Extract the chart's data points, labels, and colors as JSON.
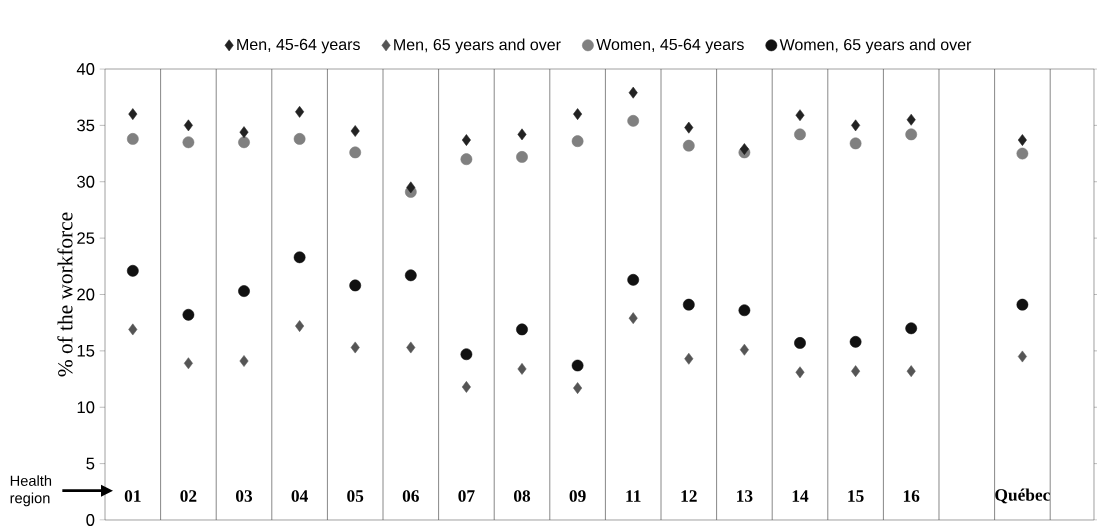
{
  "chart_data": {
    "type": "scatter",
    "ylabel": "% of the workforce",
    "categories": [
      "01",
      "02",
      "03",
      "04",
      "05",
      "06",
      "07",
      "08",
      "09",
      "11",
      "12",
      "13",
      "14",
      "15",
      "16",
      null,
      "Québec",
      null
    ],
    "series": [
      {
        "name": "Men, 45-64 years",
        "color": "#222222",
        "marker": "diamond",
        "values": [
          36.0,
          35.0,
          34.4,
          36.2,
          34.5,
          29.5,
          33.7,
          34.2,
          36.0,
          37.9,
          34.8,
          32.9,
          35.9,
          35.0,
          35.5,
          null,
          33.7,
          null
        ]
      },
      {
        "name": "Men, 65 years and over",
        "color": "#555555",
        "marker": "diamond",
        "values": [
          16.9,
          13.9,
          14.1,
          17.2,
          15.3,
          15.3,
          11.8,
          13.4,
          11.7,
          17.9,
          14.3,
          15.1,
          13.1,
          13.2,
          13.2,
          null,
          14.5,
          null
        ]
      },
      {
        "name": "Women, 45-64 years",
        "color": "#808080",
        "marker": "circle",
        "values": [
          33.8,
          33.5,
          33.5,
          33.8,
          32.6,
          29.1,
          32.0,
          32.2,
          33.6,
          35.4,
          33.2,
          32.6,
          34.2,
          33.4,
          34.2,
          null,
          32.5,
          null
        ]
      },
      {
        "name": "Women, 65 years and over",
        "color": "#111111",
        "marker": "circle",
        "values": [
          22.1,
          18.2,
          20.3,
          23.3,
          20.8,
          21.7,
          14.7,
          16.9,
          13.7,
          21.3,
          19.1,
          18.6,
          15.7,
          15.8,
          17.0,
          null,
          19.1,
          null
        ]
      }
    ],
    "ylim": [
      0,
      40
    ],
    "yticks": [
      0,
      5,
      10,
      15,
      20,
      25,
      30,
      35,
      40
    ],
    "grid": "x",
    "legend": "top",
    "annotations": [
      "Health region"
    ]
  }
}
